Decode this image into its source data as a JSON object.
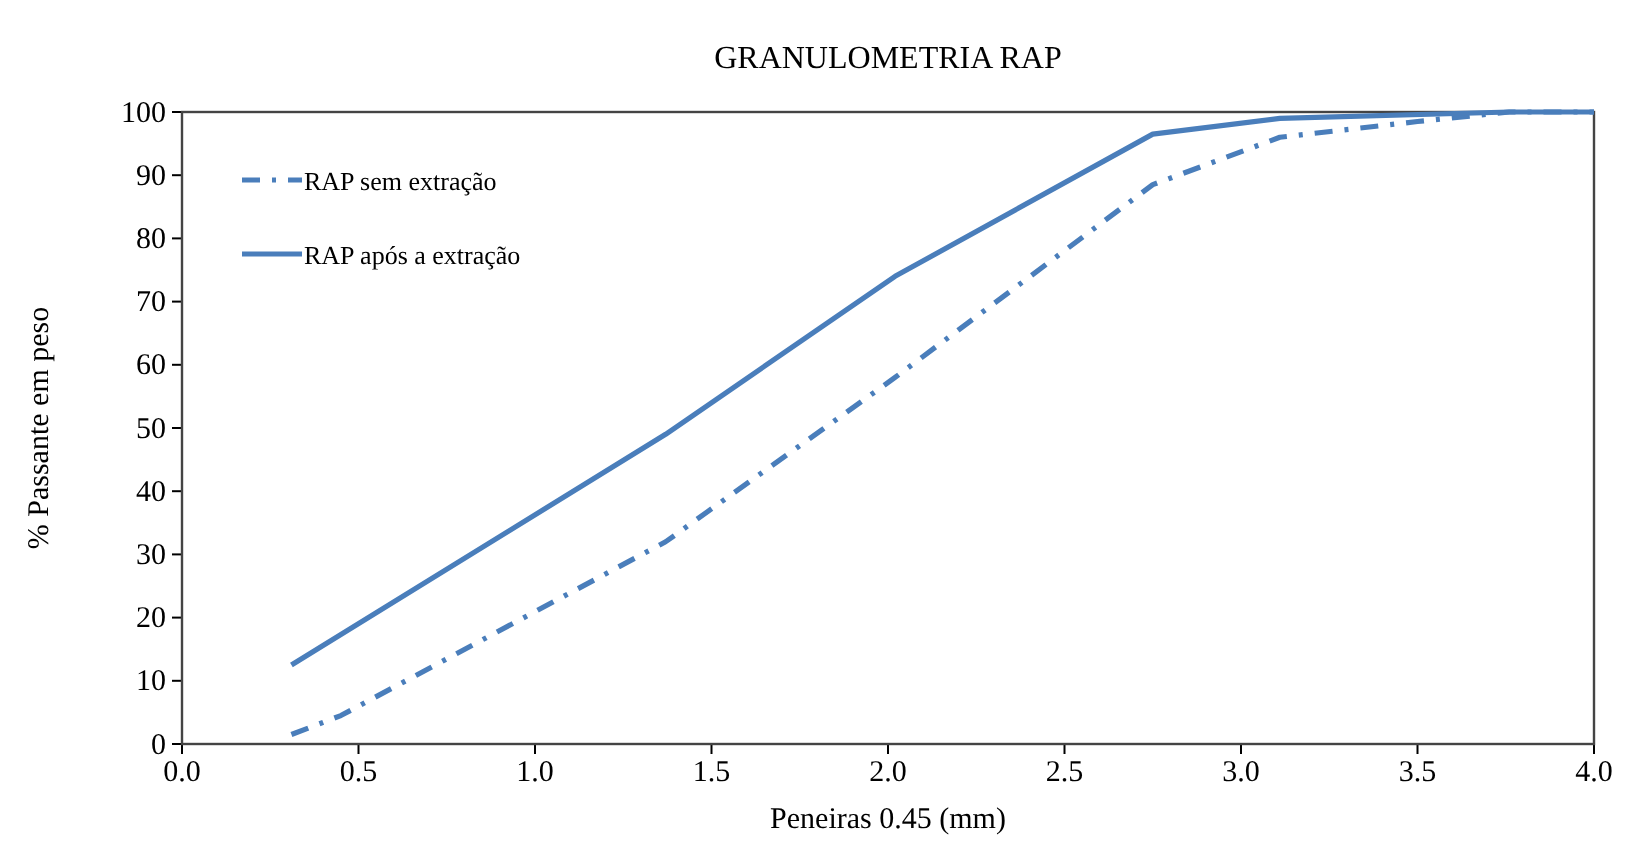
{
  "chart_data": {
    "type": "line",
    "title": "GRANULOMETRIA RAP",
    "xlabel": "Peneiras 0.45 (mm)",
    "ylabel": "% Passante em peso",
    "xlim": [
      0,
      4
    ],
    "ylim": [
      0,
      100
    ],
    "xticks": [
      {
        "value": 0,
        "label": "0.0"
      },
      {
        "value": 0.5,
        "label": "0.5"
      },
      {
        "value": 1,
        "label": "1.0"
      },
      {
        "value": 1.5,
        "label": "1.5"
      },
      {
        "value": 2,
        "label": "2.0"
      },
      {
        "value": 2.5,
        "label": "2.5"
      },
      {
        "value": 3,
        "label": "3.0"
      },
      {
        "value": 3.5,
        "label": "3.5"
      },
      {
        "value": 4,
        "label": "4.0"
      }
    ],
    "yticks": [
      0,
      10,
      20,
      30,
      40,
      50,
      60,
      70,
      80,
      90,
      100
    ],
    "grid": false,
    "legend": "top left",
    "marker": "none",
    "series": [
      {
        "name": "RAP sem extração",
        "color": "#4a7ebb",
        "line_style": "dashed",
        "x": [
          0.31,
          0.45,
          1.37,
          2.02,
          2.75,
          3.11,
          3.5,
          3.76,
          4.0
        ],
        "values": [
          1.5,
          4.5,
          32,
          58,
          88.5,
          96,
          98.5,
          100,
          100
        ]
      },
      {
        "name": "RAP após a extração",
        "color": "#4a7ebb",
        "line_style": "solid",
        "x": [
          0.31,
          1.37,
          2.02,
          2.75,
          3.11,
          3.76,
          4.0
        ],
        "values": [
          12.5,
          49,
          74,
          96.5,
          99,
          100,
          100
        ]
      }
    ]
  }
}
